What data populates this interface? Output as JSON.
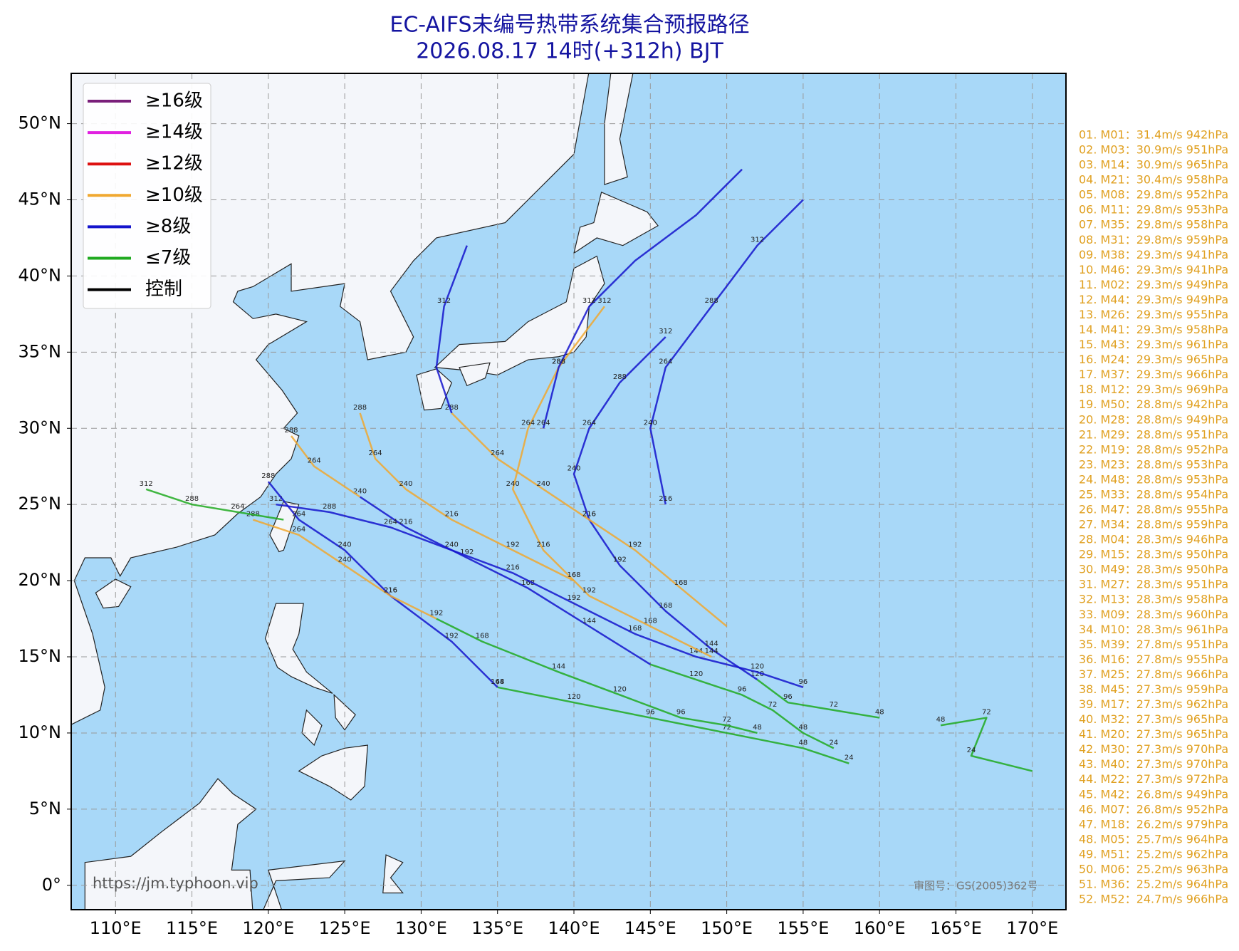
{
  "title": "EC-AIFS未编号热带系统集合预报路径",
  "subtitle": "2026.08.17 14时(+312h) BJT",
  "map": {
    "xlim": [
      107.1,
      172.2
    ],
    "ylim": [
      -1.6,
      53.3
    ],
    "xticks": [
      {
        "value": 110,
        "label": "110°E"
      },
      {
        "value": 115,
        "label": "115°E"
      },
      {
        "value": 120,
        "label": "120°E"
      },
      {
        "value": 125,
        "label": "125°E"
      },
      {
        "value": 130,
        "label": "130°E"
      },
      {
        "value": 135,
        "label": "135°E"
      },
      {
        "value": 140,
        "label": "140°E"
      },
      {
        "value": 145,
        "label": "145°E"
      },
      {
        "value": 150,
        "label": "150°E"
      },
      {
        "value": 155,
        "label": "155°E"
      },
      {
        "value": 160,
        "label": "160°E"
      },
      {
        "value": 165,
        "label": "165°E"
      },
      {
        "value": 170,
        "label": "170°E"
      }
    ],
    "yticks": [
      {
        "value": 0,
        "label": "0°"
      },
      {
        "value": 5,
        "label": "5°N"
      },
      {
        "value": 10,
        "label": "10°N"
      },
      {
        "value": 15,
        "label": "15°N"
      },
      {
        "value": 20,
        "label": "20°N"
      },
      {
        "value": 25,
        "label": "25°N"
      },
      {
        "value": 30,
        "label": "30°N"
      },
      {
        "value": 35,
        "label": "35°N"
      },
      {
        "value": 40,
        "label": "40°N"
      },
      {
        "value": 45,
        "label": "45°N"
      },
      {
        "value": 50,
        "label": "50°N"
      }
    ],
    "grid": true
  },
  "legend": [
    {
      "label": "≥16级",
      "color": "#7a1f7a"
    },
    {
      "label": "≥14级",
      "color": "#e020e0"
    },
    {
      "label": "≥12级",
      "color": "#dd1111"
    },
    {
      "label": "≥10级",
      "color": "#f0a830"
    },
    {
      "label": "≥8级",
      "color": "#1414cc"
    },
    {
      "label": "≤7级",
      "color": "#20aa20"
    },
    {
      "label": "控制",
      "color": "#000000"
    }
  ],
  "tracks": [
    {
      "color": "#20aa20",
      "lon": [
        157,
        155,
        153,
        151,
        148,
        145
      ],
      "lat": [
        9,
        10,
        11.5,
        12.5,
        13.5,
        14.5
      ],
      "hours": [
        24,
        48,
        72,
        96,
        120,
        null
      ]
    },
    {
      "color": "#1414cc",
      "lon": [
        145,
        141,
        137,
        133,
        129,
        126
      ],
      "lat": [
        14.5,
        17,
        19.5,
        21.5,
        23.5,
        25.5
      ],
      "hours": [
        null,
        144,
        168,
        192,
        216,
        240
      ]
    },
    {
      "color": "#f0a830",
      "lon": [
        126,
        123,
        121.5
      ],
      "lat": [
        25.5,
        27.5,
        29.5
      ],
      "hours": [
        null,
        264,
        288
      ]
    },
    {
      "color": "#20aa20",
      "lon": [
        160,
        157,
        154,
        152
      ],
      "lat": [
        11,
        11.5,
        12,
        13.5
      ],
      "hours": [
        48,
        72,
        96,
        120
      ]
    },
    {
      "color": "#1414cc",
      "lon": [
        152,
        149,
        146,
        143,
        141,
        140,
        141,
        143,
        146
      ],
      "lat": [
        13.5,
        15.5,
        18,
        21,
        24,
        27,
        30,
        33,
        36
      ],
      "hours": [
        null,
        144,
        168,
        192,
        216,
        240,
        264,
        288,
        312
      ]
    },
    {
      "color": "#f0a830",
      "lon": [
        150,
        147,
        144,
        141,
        138,
        135,
        132
      ],
      "lat": [
        17,
        19.5,
        22,
        24,
        26,
        28,
        31
      ],
      "hours": [
        null,
        168,
        192,
        216,
        240,
        264,
        288
      ]
    },
    {
      "color": "#1414cc",
      "lon": [
        132,
        131,
        131.5,
        133
      ],
      "lat": [
        31,
        34,
        38,
        42
      ],
      "hours": [
        null,
        null,
        312,
        null
      ]
    },
    {
      "color": "#20aa20",
      "lon": [
        164,
        167,
        166,
        168,
        170
      ],
      "lat": [
        10.5,
        11,
        8.5,
        8,
        7.5
      ],
      "hours": [
        48,
        72,
        24,
        null,
        null
      ]
    },
    {
      "color": "#1414cc",
      "lon": [
        155,
        152,
        148,
        144,
        140,
        136,
        132,
        128,
        124,
        120.5
      ],
      "lat": [
        13,
        14,
        15,
        16.5,
        18.5,
        20.5,
        22,
        23.5,
        24.5,
        25
      ],
      "hours": [
        96,
        120,
        144,
        168,
        192,
        216,
        240,
        264,
        288,
        312
      ]
    },
    {
      "color": "#f0a830",
      "lon": [
        149,
        145,
        141,
        138,
        136,
        137,
        139,
        142
      ],
      "lat": [
        15,
        17,
        19,
        22,
        26,
        30,
        34,
        38
      ],
      "hours": [
        144,
        168,
        192,
        216,
        240,
        264,
        288,
        312
      ]
    },
    {
      "color": "#1414cc",
      "lon": [
        146,
        145,
        146,
        149,
        152,
        155
      ],
      "lat": [
        25,
        30,
        34,
        38,
        42,
        45
      ],
      "hours": [
        216,
        240,
        264,
        288,
        312,
        null
      ]
    },
    {
      "color": "#f0a830",
      "lon": [
        140,
        136,
        132,
        129,
        127,
        126
      ],
      "lat": [
        20,
        22,
        24,
        26,
        28,
        31
      ],
      "hours": [
        168,
        192,
        216,
        240,
        264,
        288
      ]
    },
    {
      "color": "#20aa20",
      "lon": [
        158,
        155,
        150,
        145,
        140,
        135
      ],
      "lat": [
        8,
        9,
        10,
        11,
        12,
        13
      ],
      "hours": [
        24,
        48,
        72,
        96,
        120,
        144
      ]
    },
    {
      "color": "#1414cc",
      "lon": [
        135,
        132,
        128,
        125,
        122,
        120
      ],
      "lat": [
        13,
        16,
        19,
        22,
        24,
        26.5
      ],
      "hours": [
        168,
        192,
        216,
        240,
        264,
        288
      ]
    },
    {
      "color": "#20aa20",
      "lon": [
        152,
        150,
        147,
        143,
        139,
        134,
        131
      ],
      "lat": [
        10,
        10.5,
        11,
        12.5,
        14,
        16,
        17.5
      ],
      "hours": [
        48,
        72,
        96,
        120,
        144,
        168,
        192
      ]
    },
    {
      "color": "#f0a830",
      "lon": [
        131,
        128,
        125,
        122,
        119
      ],
      "lat": [
        17.5,
        19,
        21,
        23,
        24
      ],
      "hours": [
        null,
        216,
        240,
        264,
        288
      ]
    },
    {
      "color": "#1414cc",
      "lon": [
        138,
        139,
        141,
        144,
        148,
        151
      ],
      "lat": [
        30,
        34,
        38,
        41,
        44,
        47
      ],
      "hours": [
        264,
        288,
        312,
        null,
        null,
        null
      ]
    },
    {
      "color": "#20aa20",
      "lon": [
        121,
        118,
        115,
        112
      ],
      "lat": [
        24,
        24.5,
        25,
        26
      ],
      "hours": [
        null,
        264,
        288,
        312
      ]
    }
  ],
  "members": [
    "01. M01：31.4m/s 942hPa",
    "02. M03：30.9m/s 951hPa",
    "03. M14：30.9m/s 965hPa",
    "04. M21：30.4m/s 958hPa",
    "05. M08：29.8m/s 952hPa",
    "06. M11：29.8m/s 953hPa",
    "07. M35：29.8m/s 958hPa",
    "08. M31：29.8m/s 959hPa",
    "09. M38：29.3m/s 941hPa",
    "10. M46：29.3m/s 941hPa",
    "11. M02：29.3m/s 949hPa",
    "12. M44：29.3m/s 949hPa",
    "13. M26：29.3m/s 955hPa",
    "14. M41：29.3m/s 958hPa",
    "15. M43：29.3m/s 961hPa",
    "16. M24：29.3m/s 965hPa",
    "17. M37：29.3m/s 966hPa",
    "18. M12：29.3m/s 969hPa",
    "19. M50：28.8m/s 942hPa",
    "20. M28：28.8m/s 949hPa",
    "21. M29：28.8m/s 951hPa",
    "22. M19：28.8m/s 952hPa",
    "23. M23：28.8m/s 953hPa",
    "24. M48：28.8m/s 953hPa",
    "25. M33：28.8m/s 954hPa",
    "26. M47：28.8m/s 955hPa",
    "27. M34：28.8m/s 959hPa",
    "28. M04：28.3m/s 946hPa",
    "29. M15：28.3m/s 950hPa",
    "30. M49：28.3m/s 950hPa",
    "31. M27：28.3m/s 951hPa",
    "32. M13：28.3m/s 958hPa",
    "33. M09：28.3m/s 960hPa",
    "34. M10：28.3m/s 961hPa",
    "35. M39：27.8m/s 951hPa",
    "36. M16：27.8m/s 955hPa",
    "37. M25：27.8m/s 966hPa",
    "38. M45：27.3m/s 959hPa",
    "39. M17：27.3m/s 962hPa",
    "40. M32：27.3m/s 965hPa",
    "41. M20：27.3m/s 965hPa",
    "42. M30：27.3m/s 970hPa",
    "43. M40：27.3m/s 970hPa",
    "44. M22：27.3m/s 972hPa",
    "45. M42：26.8m/s 949hPa",
    "46. M07：26.8m/s 952hPa",
    "47. M18：26.2m/s 979hPa",
    "48. M05：25.7m/s 964hPa",
    "49. M51：25.2m/s 962hPa",
    "50. M06：25.2m/s 963hPa",
    "51. M36：25.2m/s 964hPa",
    "52. M52：24.7m/s 966hPa"
  ],
  "watermark": "https://jm.typhoon.vip",
  "approval": "审图号：GS(2005)362号"
}
